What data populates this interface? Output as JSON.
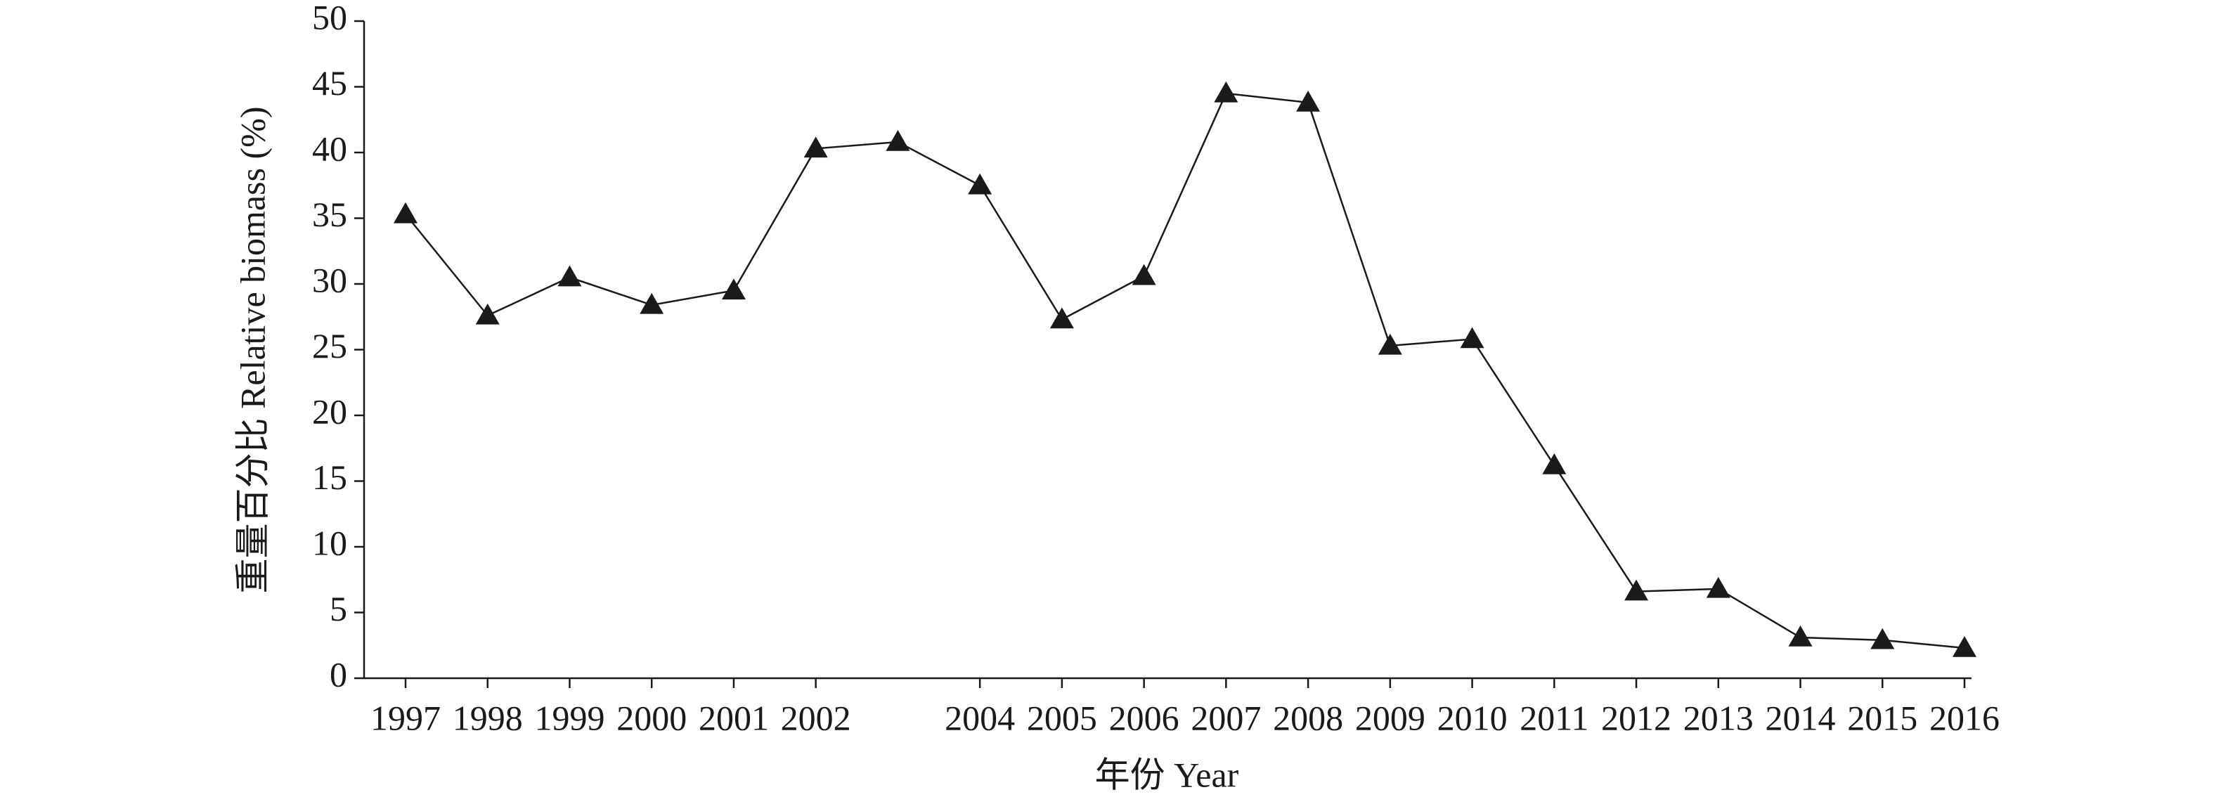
{
  "chart_data": {
    "type": "line",
    "x_label": "年份 Year",
    "y_label": "重量百分比 Relative biomass (%)",
    "categories": [
      "1997",
      "1998",
      "1999",
      "2000",
      "2001",
      "2002",
      null,
      "2004",
      "2005",
      "2006",
      "2007",
      "2008",
      "2009",
      "2010",
      "2011",
      "2012",
      "2013",
      "2014",
      "2015",
      "2016"
    ],
    "series": [
      {
        "color": "#1a1a1a",
        "values": [
          35.3,
          27.6,
          30.5,
          28.4,
          29.5,
          40.3,
          40.8,
          37.5,
          27.3,
          30.6,
          44.5,
          43.8,
          25.3,
          25.8,
          16.2,
          6.6,
          6.8,
          3.1,
          2.9,
          2.3
        ]
      }
    ],
    "ylim": [
      0,
      50
    ],
    "yticks": [
      0,
      5,
      10,
      15,
      20,
      25,
      30,
      35,
      40,
      45,
      50
    ],
    "marker": "triangle"
  }
}
